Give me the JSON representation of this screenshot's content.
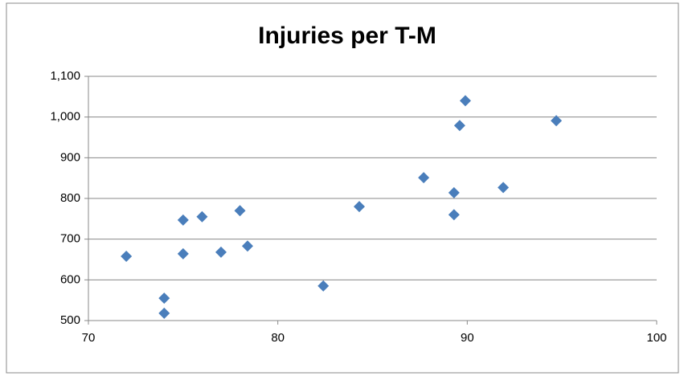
{
  "chart_data": {
    "type": "scatter",
    "title": "Injuries per T-M",
    "series": [
      {
        "color": "#4a7ebb",
        "x": [
          72,
          74,
          74,
          75,
          75,
          76,
          77,
          78,
          78.4,
          82.4,
          84.3,
          87.7,
          89.3,
          89.3,
          89.6,
          89.9,
          91.9,
          94.7
        ],
        "values": [
          658,
          555,
          518,
          747,
          664,
          755,
          668,
          770,
          683,
          585,
          780,
          851,
          814,
          760,
          979,
          1040,
          827,
          991
        ]
      }
    ],
    "xlim": [
      70,
      100
    ],
    "xticks": [
      70,
      80,
      90,
      100
    ],
    "ylim": [
      500,
      1100
    ],
    "yticks": [
      500,
      600,
      700,
      800,
      900,
      {
        "value": 1000,
        "label": "1,000"
      },
      {
        "value": 1100,
        "label": "1,100"
      }
    ],
    "grid": true
  }
}
